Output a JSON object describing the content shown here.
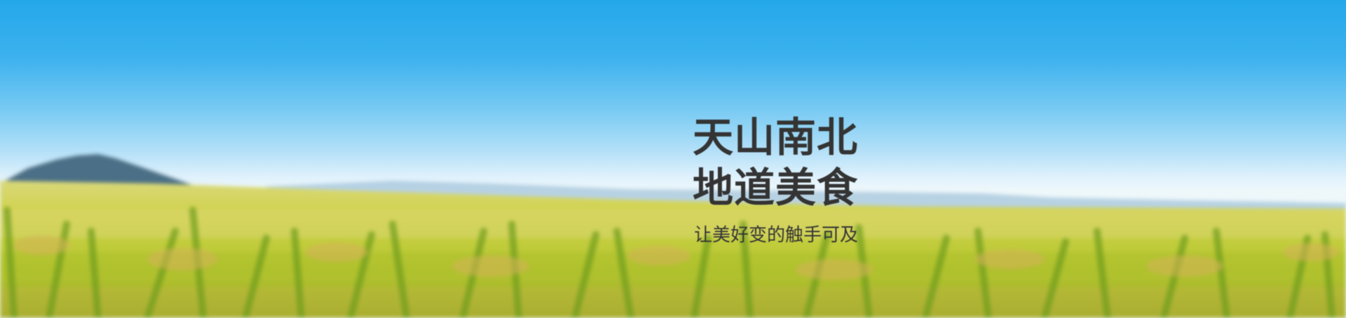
{
  "banner": {
    "headline_line1": "天山南北",
    "headline_line2": "地道美食",
    "subline": "让美好变的触手可及"
  },
  "colors": {
    "sky_top": "#24a8ea",
    "sky_horizon": "#eef8fb",
    "field": "#b8c832",
    "text": "#343434"
  }
}
